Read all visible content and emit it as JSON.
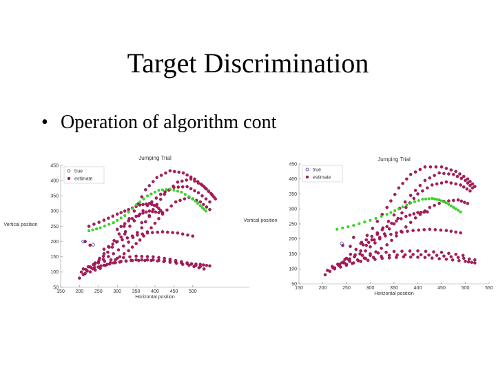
{
  "slide": {
    "title": "Target Discrimination",
    "bullet": "Operation of algorithm cont"
  },
  "colors": {
    "track": "#b01a5a",
    "track_edge": "#6b1040",
    "highlight": "#33dd22",
    "true_marker": "#4a3a9a"
  },
  "chart_data": [
    {
      "type": "scatter",
      "title": "Jumping Trial",
      "xlabel": "Horizontal position",
      "ylabel": "Vertical position",
      "xlim": [
        150,
        650
      ],
      "ylim": [
        50,
        450
      ],
      "xticks": [
        150,
        200,
        250,
        300,
        350,
        400,
        450,
        500
      ],
      "yticks": [
        50,
        100,
        150,
        200,
        250,
        300,
        350,
        400,
        450
      ],
      "legend": {
        "position": "top-left",
        "entries": [
          "true",
          "estimate"
        ]
      },
      "series": [
        {
          "name": "estimate",
          "role": "track",
          "points": [
            [
              200,
              80
            ],
            [
              230,
              115
            ],
            [
              265,
              160
            ],
            [
              305,
              225
            ],
            [
              345,
              300
            ],
            [
              375,
              370
            ],
            [
              405,
              410
            ],
            [
              440,
              432
            ],
            [
              475,
              425
            ],
            [
              505,
              405
            ],
            [
              530,
              380
            ],
            [
              548,
              358
            ],
            [
              560,
              340
            ]
          ]
        },
        {
          "name": "estimate",
          "role": "track",
          "points": [
            [
              205,
              100
            ],
            [
              240,
              125
            ],
            [
              275,
              165
            ],
            [
              310,
              215
            ],
            [
              345,
              268
            ],
            [
              380,
              318
            ],
            [
              415,
              355
            ],
            [
              450,
              378
            ],
            [
              485,
              380
            ],
            [
              515,
              360
            ],
            [
              545,
              330
            ]
          ]
        },
        {
          "name": "estimate",
          "role": "track",
          "points": [
            [
              210,
              110
            ],
            [
              250,
              132
            ],
            [
              290,
              160
            ],
            [
              330,
              198
            ],
            [
              365,
              245
            ],
            [
              395,
              305
            ],
            [
              425,
              355
            ],
            [
              460,
              395
            ],
            [
              495,
              405
            ],
            [
              525,
              385
            ],
            [
              550,
              355
            ]
          ]
        },
        {
          "name": "estimate",
          "role": "track",
          "points": [
            [
              215,
              95
            ],
            [
              255,
              112
            ],
            [
              295,
              140
            ],
            [
              330,
              170
            ],
            [
              360,
              205
            ],
            [
              390,
              245
            ],
            [
              420,
              290
            ],
            [
              455,
              330
            ],
            [
              490,
              345
            ],
            [
              520,
              330
            ],
            [
              545,
              305
            ]
          ]
        },
        {
          "name": "estimate",
          "role": "track",
          "points": [
            [
              220,
              105
            ],
            [
              265,
              122
            ],
            [
              310,
              135
            ],
            [
              350,
              140
            ],
            [
              395,
              140
            ],
            [
              440,
              135
            ],
            [
              485,
              128
            ],
            [
              520,
              125
            ],
            [
              545,
              120
            ]
          ]
        },
        {
          "name": "estimate",
          "role": "track",
          "points": [
            [
              240,
              115
            ],
            [
              290,
              130
            ],
            [
              340,
              138
            ],
            [
              390,
              138
            ],
            [
              440,
              132
            ],
            [
              490,
              122
            ],
            [
              530,
              110
            ]
          ]
        },
        {
          "name": "estimate",
          "role": "track",
          "points": [
            [
              250,
              130
            ],
            [
              300,
              145
            ],
            [
              350,
              152
            ],
            [
              395,
              150
            ],
            [
              440,
              142
            ],
            [
              485,
              130
            ],
            [
              520,
              118
            ]
          ]
        },
        {
          "name": "estimate",
          "role": "track",
          "points": [
            [
              265,
              175
            ],
            [
              300,
              200
            ],
            [
              340,
              218
            ],
            [
              380,
              228
            ],
            [
              420,
              232
            ],
            [
              460,
              228
            ],
            [
              500,
              218
            ]
          ]
        },
        {
          "name": "estimate",
          "role": "track",
          "points": [
            [
              225,
              250
            ],
            [
              265,
              270
            ],
            [
              300,
              290
            ],
            [
              330,
              305
            ],
            [
              360,
              320
            ],
            [
              385,
              325
            ],
            [
              405,
              315
            ],
            [
              420,
              295
            ]
          ]
        },
        {
          "name": "estimate",
          "role": "track",
          "points": [
            [
              300,
              240
            ],
            [
              330,
              268
            ],
            [
              360,
              290
            ],
            [
              385,
              300
            ],
            [
              410,
              295
            ]
          ]
        },
        {
          "name": "estimate",
          "role": "highlight",
          "points": [
            [
              225,
              235
            ],
            [
              255,
              245
            ],
            [
              290,
              262
            ],
            [
              320,
              285
            ],
            [
              350,
              320
            ],
            [
              380,
              350
            ],
            [
              410,
              368
            ],
            [
              440,
              372
            ],
            [
              470,
              362
            ],
            [
              500,
              340
            ],
            [
              520,
              318
            ],
            [
              535,
              300
            ]
          ]
        },
        {
          "name": "estimate",
          "role": "stray",
          "points": [
            [
              215,
              200
            ],
            [
              228,
              188
            ],
            [
              320,
              225
            ],
            [
              365,
              262
            ],
            [
              385,
              282
            ]
          ]
        },
        {
          "name": "true",
          "role": "true",
          "points": [
            [
              210,
              200
            ],
            [
              236,
              190
            ]
          ]
        }
      ]
    },
    {
      "type": "scatter",
      "title": "Jumping Trial",
      "xlabel": "Horizontal position",
      "ylabel": "Vertical position",
      "xlim": [
        150,
        550
      ],
      "ylim": [
        50,
        450
      ],
      "xticks": [
        150,
        200,
        250,
        300,
        350,
        400,
        450,
        500,
        550
      ],
      "yticks": [
        50,
        100,
        150,
        200,
        250,
        300,
        350,
        400,
        450
      ],
      "legend": {
        "position": "top-left",
        "entries": [
          "true",
          "estimate"
        ]
      },
      "series": [
        {
          "name": "estimate",
          "role": "track",
          "points": [
            [
              205,
              80
            ],
            [
              235,
              115
            ],
            [
              270,
              165
            ],
            [
              305,
              235
            ],
            [
              335,
              305
            ],
            [
              360,
              370
            ],
            [
              385,
              415
            ],
            [
              415,
              440
            ],
            [
              450,
              440
            ],
            [
              480,
              425
            ],
            [
              505,
              400
            ],
            [
              520,
              375
            ]
          ]
        },
        {
          "name": "estimate",
          "role": "track",
          "points": [
            [
              210,
              95
            ],
            [
              245,
              120
            ],
            [
              280,
              160
            ],
            [
              315,
              215
            ],
            [
              350,
              280
            ],
            [
              385,
              345
            ],
            [
              415,
              395
            ],
            [
              445,
              420
            ],
            [
              475,
              415
            ],
            [
              500,
              395
            ],
            [
              515,
              370
            ]
          ]
        },
        {
          "name": "estimate",
          "role": "track",
          "points": [
            [
              220,
              108
            ],
            [
              255,
              130
            ],
            [
              290,
              160
            ],
            [
              320,
              200
            ],
            [
              350,
              250
            ],
            [
              375,
              305
            ],
            [
              400,
              350
            ],
            [
              430,
              380
            ],
            [
              460,
              390
            ],
            [
              490,
              380
            ],
            [
              510,
              360
            ]
          ]
        },
        {
          "name": "estimate",
          "role": "track",
          "points": [
            [
              225,
              100
            ],
            [
              262,
              118
            ],
            [
              300,
              145
            ],
            [
              335,
              180
            ],
            [
              365,
              225
            ],
            [
              395,
              270
            ],
            [
              425,
              305
            ],
            [
              455,
              325
            ],
            [
              485,
              330
            ],
            [
              505,
              318
            ]
          ]
        },
        {
          "name": "estimate",
          "role": "track",
          "points": [
            [
              235,
              110
            ],
            [
              280,
              125
            ],
            [
              325,
              135
            ],
            [
              370,
              140
            ],
            [
              415,
              138
            ],
            [
              460,
              132
            ],
            [
              500,
              125
            ],
            [
              520,
              120
            ]
          ]
        },
        {
          "name": "estimate",
          "role": "track",
          "points": [
            [
              240,
              120
            ],
            [
              290,
              135
            ],
            [
              340,
              145
            ],
            [
              390,
              148
            ],
            [
              440,
              145
            ],
            [
              485,
              138
            ],
            [
              520,
              130
            ]
          ]
        },
        {
          "name": "estimate",
          "role": "track",
          "points": [
            [
              250,
              135
            ],
            [
              300,
              150
            ],
            [
              350,
              158
            ],
            [
              400,
              160
            ],
            [
              450,
              155
            ],
            [
              495,
              145
            ]
          ]
        },
        {
          "name": "estimate",
          "role": "track",
          "points": [
            [
              285,
              180
            ],
            [
              320,
              205
            ],
            [
              355,
              220
            ],
            [
              390,
              228
            ],
            [
              425,
              232
            ],
            [
              460,
              228
            ],
            [
              490,
              220
            ]
          ]
        },
        {
          "name": "estimate",
          "role": "track",
          "points": [
            [
              280,
              185
            ],
            [
              315,
              220
            ],
            [
              345,
              252
            ],
            [
              375,
              275
            ],
            [
              400,
              288
            ],
            [
              420,
              290
            ]
          ]
        },
        {
          "name": "estimate",
          "role": "highlight",
          "points": [
            [
              230,
              232
            ],
            [
              265,
              245
            ],
            [
              300,
              262
            ],
            [
              335,
              282
            ],
            [
              360,
              300
            ],
            [
              385,
              320
            ],
            [
              410,
              332
            ],
            [
              430,
              335
            ],
            [
              445,
              330
            ],
            [
              460,
              320
            ],
            [
              475,
              305
            ],
            [
              490,
              290
            ]
          ]
        },
        {
          "name": "estimate",
          "role": "stray",
          "points": [
            [
              242,
              178
            ],
            [
              258,
              175
            ],
            [
              265,
              205
            ]
          ]
        },
        {
          "name": "true",
          "role": "true",
          "points": [
            [
              240,
              185
            ]
          ]
        }
      ]
    }
  ]
}
